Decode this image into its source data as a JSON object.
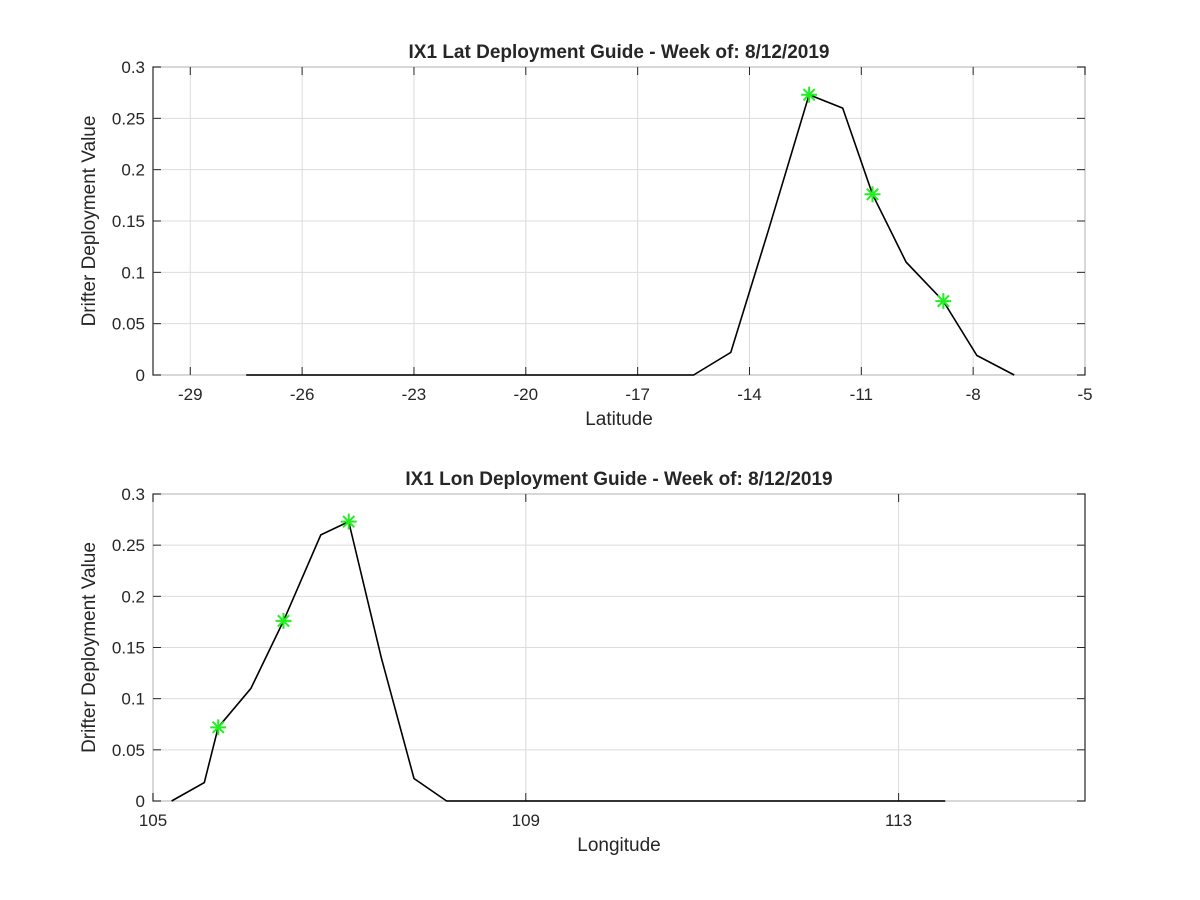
{
  "chart_data": [
    {
      "type": "line",
      "title": "IX1 Lat Deployment Guide - Week of: 8/12/2019",
      "xlabel": "Latitude",
      "ylabel": "Drifter Deployment Value",
      "xlim": [
        -30,
        -5
      ],
      "ylim": [
        0,
        0.3
      ],
      "xticks": [
        -29,
        -26,
        -23,
        -20,
        -17,
        -14,
        -11,
        -8,
        -5
      ],
      "yticks": [
        0,
        0.05,
        0.1,
        0.15,
        0.2,
        0.25,
        0.3
      ],
      "xtick_labels": [
        "-29",
        "-26",
        "-23",
        "-20",
        "-17",
        "-14",
        "-11",
        "-8",
        "-5"
      ],
      "ytick_labels": [
        "0",
        "0.05",
        "0.1",
        "0.15",
        "0.2",
        "0.25",
        "0.3"
      ],
      "grid": true,
      "line_color": "#000000",
      "marker_color": "#22ee22",
      "series": [
        {
          "x": [
            -27.5,
            -16.5,
            -15.5,
            -14.5,
            -13.5,
            -12.4,
            -11.5,
            -10.7,
            -9.8,
            -8.8,
            -7.9,
            -6.9
          ],
          "y": [
            0,
            0,
            0,
            0.022,
            0.14,
            0.273,
            0.26,
            0.176,
            0.11,
            0.072,
            0.019,
            0
          ]
        }
      ],
      "markers": {
        "x": [
          -12.4,
          -10.7,
          -8.8
        ],
        "y": [
          0.273,
          0.176,
          0.072
        ]
      }
    },
    {
      "type": "line",
      "title": "IX1 Lon Deployment Guide - Week of: 8/12/2019",
      "xlabel": "Longitude",
      "ylabel": "Drifter Deployment Value",
      "xlim": [
        105,
        115
      ],
      "ylim": [
        0,
        0.3
      ],
      "xticks": [
        105,
        109,
        113
      ],
      "yticks": [
        0,
        0.05,
        0.1,
        0.15,
        0.2,
        0.25,
        0.3
      ],
      "xtick_labels": [
        "105",
        "109",
        "113"
      ],
      "ytick_labels": [
        "0",
        "0.05",
        "0.1",
        "0.15",
        "0.2",
        "0.25",
        "0.3"
      ],
      "grid": true,
      "line_color": "#000000",
      "marker_color": "#22ee22",
      "series": [
        {
          "x": [
            105.2,
            105.55,
            105.7,
            106.05,
            106.4,
            106.8,
            107.1,
            107.45,
            107.8,
            108.15,
            113.5
          ],
          "y": [
            0,
            0.018,
            0.072,
            0.11,
            0.176,
            0.26,
            0.273,
            0.14,
            0.022,
            0,
            0
          ]
        }
      ],
      "markers": {
        "x": [
          105.7,
          106.4,
          107.1
        ],
        "y": [
          0.072,
          0.176,
          0.273
        ]
      }
    }
  ]
}
